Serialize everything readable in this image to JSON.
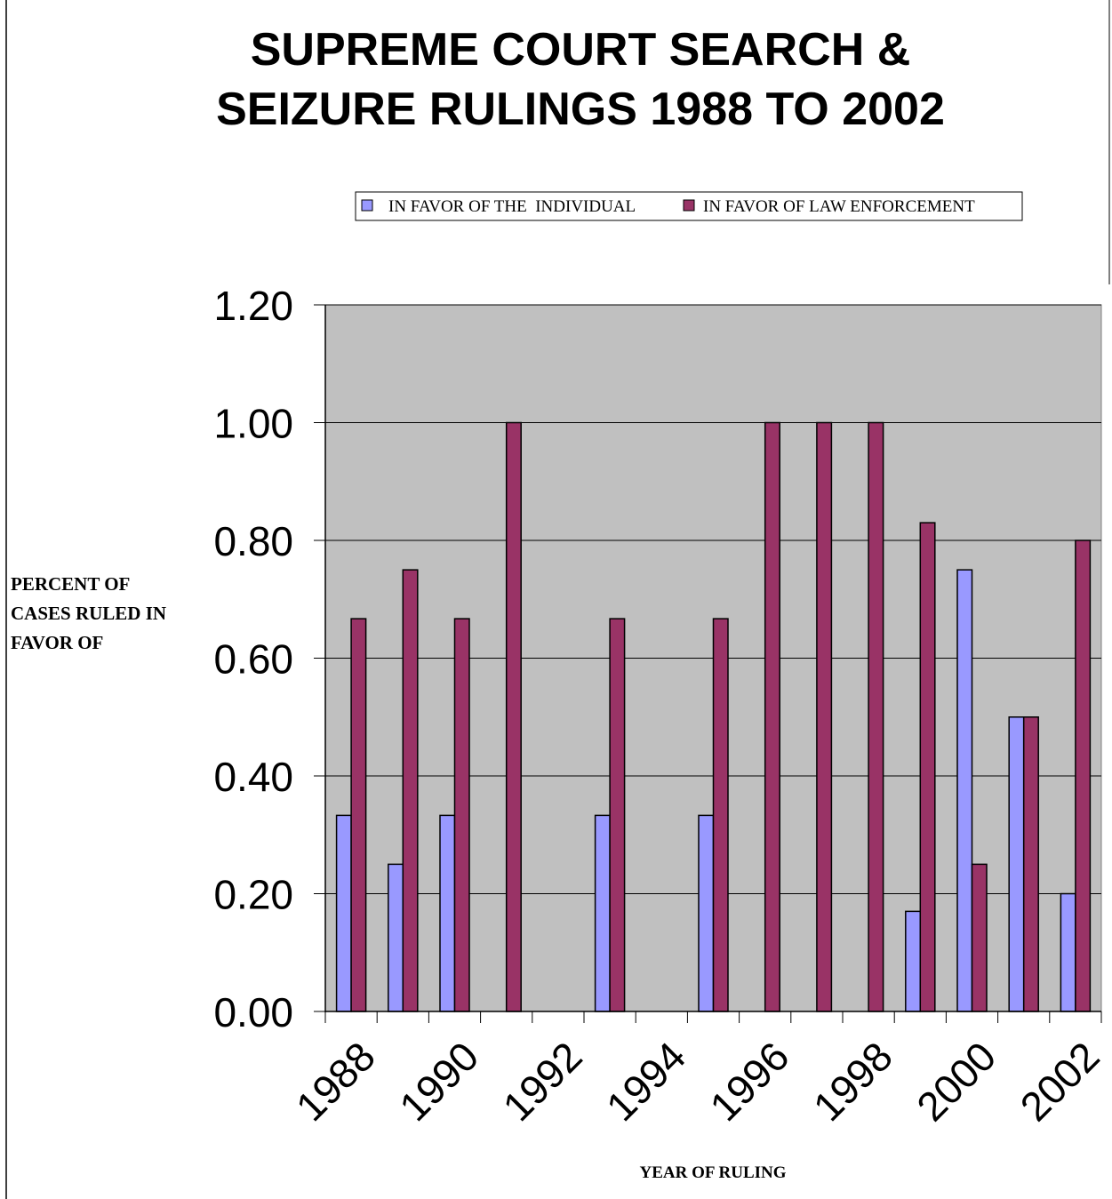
{
  "chart_data": {
    "type": "bar",
    "title": "SUPREME COURT SEARCH & SEIZURE RULINGS 1988 TO 2002",
    "title_lines": [
      "SUPREME COURT SEARCH &",
      "SEIZURE RULINGS 1988 TO 2002"
    ],
    "xlabel": "YEAR OF RULING",
    "ylabel_lines": [
      "PERCENT OF",
      "CASES RULED IN",
      "FAVOR OF"
    ],
    "categories": [
      "1988",
      "1989",
      "1990",
      "1991",
      "1992",
      "1993",
      "1994",
      "1995",
      "1996",
      "1997",
      "1998",
      "1999",
      "2000",
      "2001",
      "2002"
    ],
    "x_tick_labels": [
      "1988",
      "1990",
      "1992",
      "1994",
      "1996",
      "1998",
      "2000",
      "2002"
    ],
    "y_tick_labels": [
      "0.00",
      "0.20",
      "0.40",
      "0.60",
      "0.80",
      "1.00",
      "1.20"
    ],
    "ylim": [
      0,
      1.2
    ],
    "grid": true,
    "legend_position": "top",
    "series": [
      {
        "name": "IN FAVOR OF THE  INDIVIDUAL",
        "color": "#9999ff",
        "values": [
          0.333,
          0.25,
          0.333,
          0,
          0,
          0.333,
          0,
          0.333,
          0,
          0,
          0,
          0.17,
          0.75,
          0.5,
          0.2
        ]
      },
      {
        "name": "IN FAVOR OF LAW ENFORCEMENT",
        "color": "#993366",
        "values": [
          0.667,
          0.75,
          0.667,
          1.0,
          0,
          0.667,
          0,
          0.667,
          1.0,
          1.0,
          1.0,
          0.83,
          0.25,
          0.5,
          0.8
        ]
      }
    ],
    "plot_background": "#c0c0c0"
  }
}
